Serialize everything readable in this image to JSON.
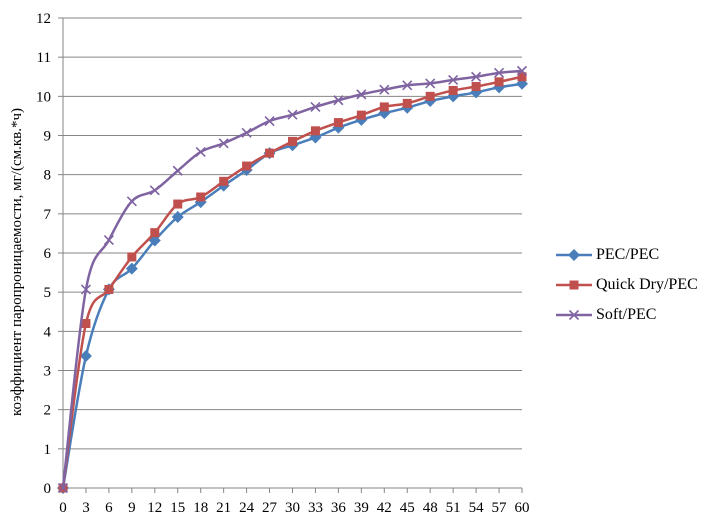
{
  "chart_data": {
    "type": "line",
    "title": "",
    "xlabel": "",
    "ylabel": "коэффициент паропроницаемости, мг/(см.кв.*ч)",
    "xlim": [
      0,
      60
    ],
    "ylim": [
      0,
      12
    ],
    "x_ticks": [
      0,
      3,
      6,
      9,
      12,
      15,
      18,
      21,
      24,
      27,
      30,
      33,
      36,
      39,
      42,
      45,
      48,
      51,
      54,
      57,
      60
    ],
    "y_ticks": [
      0,
      1,
      2,
      3,
      4,
      5,
      6,
      7,
      8,
      9,
      10,
      11,
      12
    ],
    "grid": "horizontal",
    "legend_position": "right",
    "x": [
      0,
      3,
      6,
      9,
      12,
      15,
      18,
      21,
      24,
      27,
      30,
      33,
      36,
      39,
      42,
      45,
      48,
      51,
      54,
      57,
      60
    ],
    "series": [
      {
        "name": "PEC/PEC",
        "color": "#4a7ebb",
        "marker": "diamond",
        "values": [
          0,
          3.37,
          5.07,
          5.6,
          6.32,
          6.92,
          7.3,
          7.72,
          8.12,
          8.55,
          8.75,
          8.95,
          9.2,
          9.4,
          9.57,
          9.71,
          9.88,
          10.0,
          10.1,
          10.23,
          10.32
        ]
      },
      {
        "name": "Quick Dry/PEC",
        "color": "#c0504d",
        "marker": "square",
        "values": [
          0,
          4.2,
          5.07,
          5.9,
          6.52,
          7.25,
          7.43,
          7.83,
          8.22,
          8.55,
          8.85,
          9.12,
          9.33,
          9.52,
          9.73,
          9.82,
          10.0,
          10.15,
          10.25,
          10.37,
          10.5
        ]
      },
      {
        "name": "Soft/PEC",
        "color": "#8064a2",
        "marker": "x",
        "values": [
          0,
          5.07,
          6.33,
          7.32,
          7.6,
          8.1,
          8.58,
          8.8,
          9.07,
          9.37,
          9.53,
          9.73,
          9.9,
          10.05,
          10.17,
          10.28,
          10.33,
          10.42,
          10.5,
          10.6,
          10.65
        ]
      }
    ]
  }
}
